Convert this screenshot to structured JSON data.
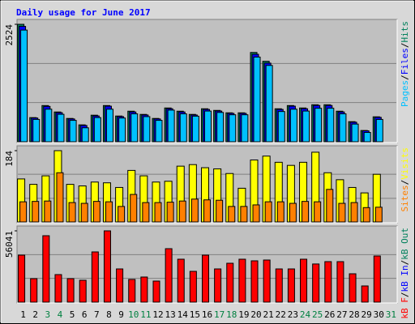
{
  "legend_separator": "/",
  "chart_data": [
    {
      "type": "bar",
      "title": "Daily usage for June 2017",
      "ylim": [
        0,
        2524
      ],
      "yticks": [
        2524
      ],
      "gridlines": [
        841,
        1683
      ],
      "series": [
        {
          "name": "Hits",
          "color": "#00805c",
          "values": [
            2524,
            519,
            778,
            640,
            501,
            363,
            571,
            778,
            553,
            657,
            588,
            501,
            726,
            657,
            588,
            709,
            674,
            622,
            622,
            1919,
            1729,
            709,
            778,
            726,
            795,
            795,
            657,
            432,
            242,
            536,
            null
          ]
        },
        {
          "name": "Files",
          "color": "#0000ff",
          "values": [
            2480,
            510,
            760,
            625,
            490,
            350,
            555,
            765,
            540,
            640,
            575,
            490,
            710,
            640,
            575,
            695,
            660,
            610,
            610,
            1880,
            1690,
            695,
            765,
            710,
            780,
            780,
            640,
            420,
            235,
            525,
            null
          ]
        },
        {
          "name": "Pages",
          "color": "#00c0ff",
          "values": [
            2400,
            480,
            700,
            590,
            460,
            300,
            520,
            700,
            510,
            600,
            540,
            460,
            680,
            600,
            550,
            660,
            630,
            580,
            580,
            1820,
            1640,
            650,
            700,
            660,
            720,
            720,
            600,
            380,
            200,
            480,
            null
          ]
        }
      ]
    },
    {
      "type": "bar",
      "ylim": [
        0,
        184
      ],
      "yticks": [
        184
      ],
      "gridlines": [
        61,
        123
      ],
      "series": [
        {
          "name": "Visits",
          "color": "#ffff00",
          "values": [
            111,
            97,
            119,
            184,
            97,
            93,
            103,
            101,
            89,
            133,
            119,
            103,
            105,
            144,
            148,
            140,
            137,
            125,
            87,
            160,
            170,
            154,
            146,
            154,
            180,
            127,
            109,
            89,
            75,
            123,
            null
          ]
        },
        {
          "name": "Sites",
          "color": "#ff8000",
          "values": [
            52,
            53,
            54,
            127,
            50,
            48,
            53,
            52,
            40,
            71,
            50,
            50,
            51,
            54,
            59,
            57,
            56,
            40,
            40,
            44,
            52,
            52,
            48,
            53,
            52,
            84,
            48,
            50,
            37,
            38,
            null
          ]
        }
      ]
    },
    {
      "type": "bar",
      "ylim": [
        0,
        56041
      ],
      "yticks": [
        56041
      ],
      "gridlines": [
        18680,
        37361
      ],
      "categories": [
        "1",
        "2",
        "3",
        "4",
        "5",
        "6",
        "7",
        "8",
        "9",
        "10",
        "11",
        "12",
        "13",
        "14",
        "15",
        "16",
        "17",
        "18",
        "19",
        "20",
        "21",
        "22",
        "23",
        "24",
        "25",
        "26",
        "27",
        "28",
        "29",
        "30",
        "31"
      ],
      "category_colors": [
        "#000000",
        "#000000",
        "#008040",
        "#008040",
        "#000000",
        "#000000",
        "#000000",
        "#000000",
        "#000000",
        "#008040",
        "#008040",
        "#000000",
        "#000000",
        "#000000",
        "#000000",
        "#000000",
        "#008040",
        "#008040",
        "#000000",
        "#000000",
        "#000000",
        "#000000",
        "#000000",
        "#008040",
        "#008040",
        "#000000",
        "#000000",
        "#000000",
        "#000000",
        "#000000",
        "#008040"
      ],
      "series": [
        {
          "name": "kB Out",
          "color": "#00805c",
          "values": [
            null,
            null,
            null,
            null,
            null,
            null,
            null,
            null,
            null,
            null,
            null,
            null,
            null,
            null,
            null,
            null,
            null,
            null,
            null,
            null,
            null,
            null,
            null,
            null,
            null,
            null,
            null,
            null,
            null,
            null,
            null
          ]
        },
        {
          "name": "kB In",
          "color": "#0000ff",
          "values": [
            null,
            null,
            null,
            null,
            null,
            null,
            null,
            null,
            null,
            null,
            null,
            null,
            null,
            null,
            null,
            null,
            null,
            null,
            null,
            null,
            null,
            null,
            null,
            null,
            null,
            null,
            null,
            null,
            null,
            null,
            null
          ]
        },
        {
          "name": "kB F",
          "color": "#ff0000",
          "values": [
            36937,
            18469,
            52220,
            21653,
            18469,
            17195,
            39485,
            56041,
            26110,
            17832,
            19742,
            16558,
            42032,
            33752,
            24200,
            36937,
            26110,
            30568,
            33752,
            32478,
            33115,
            26110,
            26110,
            33752,
            30000,
            31842,
            31842,
            22290,
            12737,
            36300,
            null
          ]
        }
      ]
    }
  ]
}
